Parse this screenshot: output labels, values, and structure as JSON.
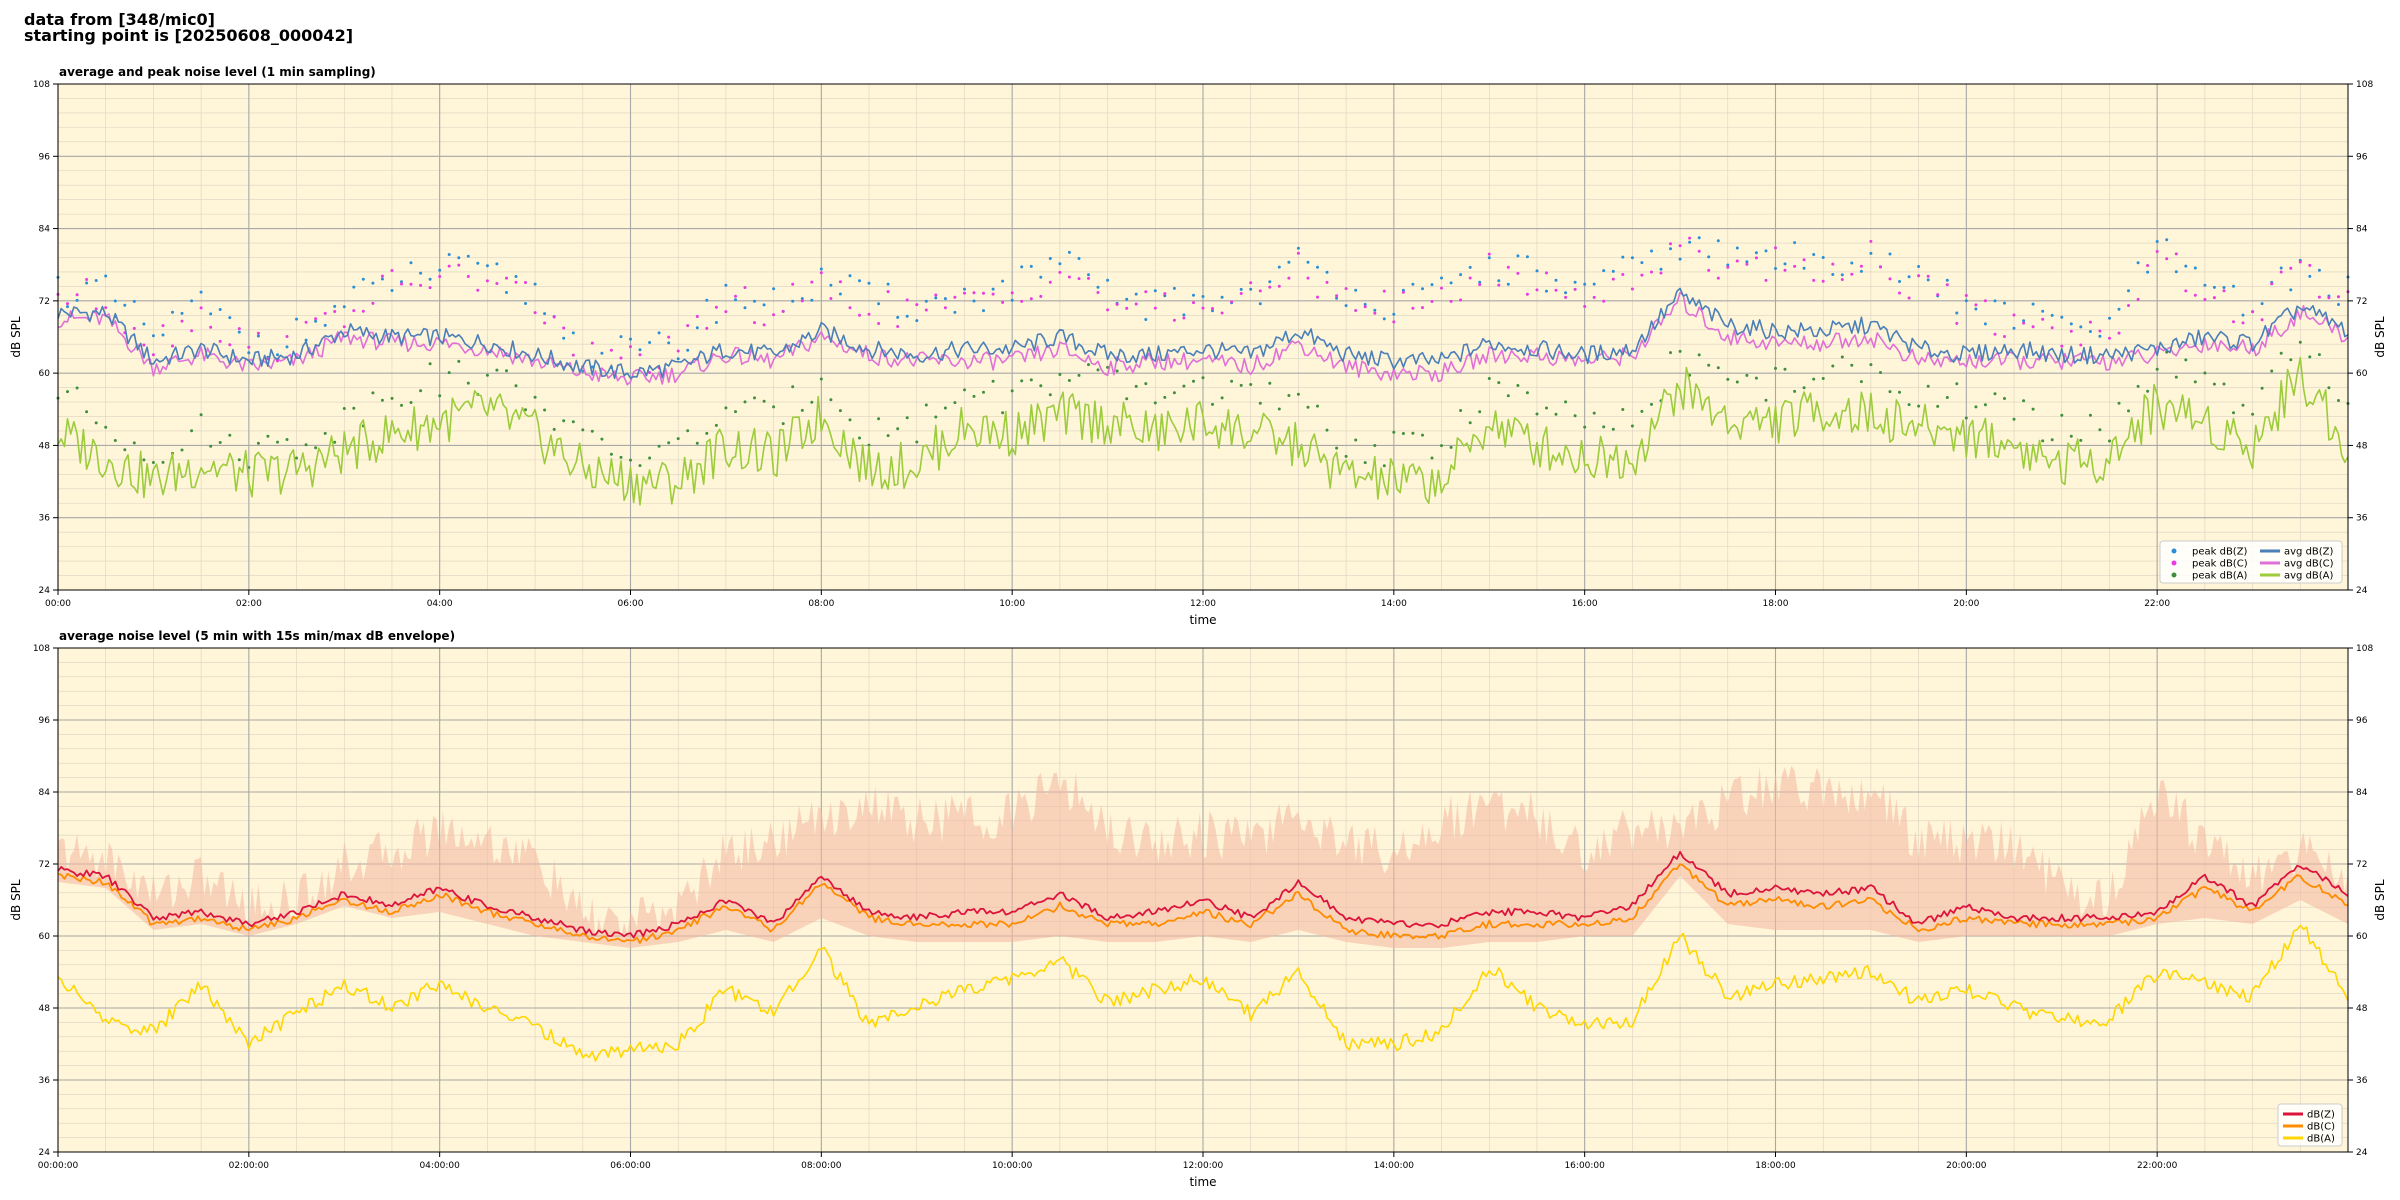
{
  "header": {
    "line1": "data from [348/mic0]",
    "line2": "starting point is [20250608_000042]"
  },
  "colors": {
    "plot_bg": "#fff5d8",
    "peak_z": "#2b8fd6",
    "peak_c": "#e83ce0",
    "peak_a": "#3f8f3f",
    "avg_z": "#4a7fb8",
    "avg_c": "#e070d8",
    "avg_a": "#9ccc3c",
    "env_z": "#dc143c",
    "env_c": "#ff8c00",
    "env_a": "#ffd700",
    "envelope_band": "#f4b6a0"
  },
  "chart_data": [
    {
      "type": "scatter+line",
      "title": "average and peak noise level (1 min sampling)",
      "xlabel": "time",
      "ylabel": "dB SPL",
      "ylim": [
        24,
        108
      ],
      "yticks": [
        24,
        36,
        48,
        60,
        72,
        84,
        96,
        108
      ],
      "xlim_hours": [
        0,
        24
      ],
      "xtick_hours": [
        0,
        2,
        4,
        6,
        8,
        10,
        12,
        14,
        16,
        18,
        20,
        22
      ],
      "xtick_labels": [
        "00:00",
        "02:00",
        "04:00",
        "06:00",
        "08:00",
        "10:00",
        "12:00",
        "14:00",
        "16:00",
        "18:00",
        "20:00",
        "22:00"
      ],
      "grid": true,
      "legend_position": "lower-right",
      "legend": [
        "peak dB(Z)",
        "peak dB(C)",
        "peak dB(A)",
        "avg dB(Z)",
        "avg dB(C)",
        "avg dB(A)"
      ],
      "x_hours": [
        0,
        0.5,
        1,
        1.5,
        2,
        2.5,
        3,
        3.5,
        4,
        4.5,
        5,
        5.5,
        6,
        6.5,
        7,
        7.5,
        8,
        8.5,
        9,
        9.5,
        10,
        10.5,
        11,
        11.5,
        12,
        12.5,
        13,
        13.5,
        14,
        14.5,
        15,
        15.5,
        16,
        16.5,
        17,
        17.5,
        18,
        18.5,
        19,
        19.5,
        20,
        20.5,
        21,
        21.5,
        22,
        22.5,
        23,
        23.5,
        24
      ],
      "series": [
        {
          "name": "avg dB(Z)",
          "values": [
            70,
            70,
            62,
            64,
            62,
            63,
            67,
            66,
            66,
            65,
            63,
            61,
            60,
            61,
            64,
            63,
            67,
            64,
            63,
            64,
            64,
            66,
            63,
            63,
            64,
            63,
            67,
            63,
            62,
            62,
            65,
            64,
            63,
            64,
            73,
            68,
            67,
            67,
            68,
            64,
            63,
            64,
            63,
            63,
            64,
            66,
            65,
            71,
            67
          ]
        },
        {
          "name": "avg dB(C)",
          "values": [
            69,
            69,
            61,
            63,
            61,
            62,
            66,
            65,
            65,
            64,
            62,
            60,
            59,
            60,
            63,
            62,
            66,
            63,
            62,
            62,
            62,
            64,
            61,
            62,
            62,
            61,
            65,
            61,
            60,
            60,
            63,
            63,
            62,
            63,
            72,
            66,
            65,
            65,
            66,
            62,
            62,
            62,
            62,
            62,
            63,
            65,
            64,
            70,
            66
          ]
        },
        {
          "name": "avg dB(A)",
          "values": [
            50,
            46,
            42,
            45,
            43,
            44,
            47,
            50,
            52,
            54,
            50,
            44,
            42,
            42,
            48,
            46,
            53,
            44,
            45,
            51,
            50,
            53,
            52,
            50,
            52,
            50,
            48,
            43,
            42,
            42,
            52,
            48,
            46,
            46,
            58,
            52,
            52,
            54,
            53,
            51,
            50,
            48,
            45,
            46,
            55,
            52,
            48,
            60,
            48
          ]
        },
        {
          "name": "peak dB(Z)",
          "values": [
            73,
            72,
            65,
            70,
            64,
            65,
            70,
            74,
            76,
            75,
            72,
            62,
            62,
            63,
            72,
            70,
            74,
            71,
            70,
            71,
            73,
            77,
            72,
            70,
            71,
            72,
            77,
            73,
            70,
            72,
            77,
            75,
            72,
            76,
            80,
            78,
            78,
            77,
            79,
            74,
            70,
            68,
            67,
            66,
            80,
            72,
            70,
            76,
            72
          ]
        },
        {
          "name": "peak dB(C)",
          "values": [
            72,
            71,
            64,
            69,
            63,
            64,
            69,
            73,
            75,
            74,
            71,
            61,
            61,
            62,
            71,
            69,
            73,
            70,
            69,
            70,
            72,
            76,
            71,
            69,
            70,
            71,
            76,
            72,
            69,
            71,
            76,
            74,
            71,
            75,
            79,
            77,
            77,
            76,
            78,
            73,
            69,
            67,
            66,
            65,
            79,
            71,
            69,
            75,
            71
          ]
        },
        {
          "name": "peak dB(A)",
          "values": [
            56,
            50,
            46,
            49,
            46,
            47,
            51,
            56,
            58,
            58,
            55,
            47,
            45,
            46,
            53,
            51,
            58,
            49,
            50,
            56,
            55,
            58,
            57,
            55,
            57,
            55,
            53,
            47,
            46,
            47,
            57,
            53,
            50,
            50,
            62,
            57,
            57,
            59,
            58,
            56,
            54,
            52,
            49,
            50,
            60,
            57,
            52,
            64,
            52
          ]
        }
      ]
    },
    {
      "type": "line+area",
      "title": "average noise level (5 min with 15s min/max dB envelope)",
      "xlabel": "time",
      "ylabel": "dB SPL",
      "ylim": [
        24,
        108
      ],
      "yticks": [
        24,
        36,
        48,
        60,
        72,
        84,
        96,
        108
      ],
      "xlim_hours": [
        0,
        24
      ],
      "xtick_hours": [
        0,
        2,
        4,
        6,
        8,
        10,
        12,
        14,
        16,
        18,
        20,
        22
      ],
      "xtick_labels": [
        "00:00:00",
        "02:00:00",
        "04:00:00",
        "06:00:00",
        "08:00:00",
        "10:00:00",
        "12:00:00",
        "14:00:00",
        "16:00:00",
        "18:00:00",
        "20:00:00",
        "22:00:00"
      ],
      "grid": true,
      "legend_position": "lower-right",
      "legend": [
        "dB(Z)",
        "dB(C)",
        "dB(A)"
      ],
      "x_hours": [
        0,
        0.5,
        1,
        1.5,
        2,
        2.5,
        3,
        3.5,
        4,
        4.5,
        5,
        5.5,
        6,
        6.5,
        7,
        7.5,
        8,
        8.5,
        9,
        9.5,
        10,
        10.5,
        11,
        11.5,
        12,
        12.5,
        13,
        13.5,
        14,
        14.5,
        15,
        15.5,
        16,
        16.5,
        17,
        17.5,
        18,
        18.5,
        19,
        19.5,
        20,
        20.5,
        21,
        21.5,
        22,
        22.5,
        23,
        23.5,
        24
      ],
      "series": [
        {
          "name": "dB(Z)",
          "values": [
            71,
            70,
            63,
            64,
            62,
            64,
            67,
            65,
            68,
            65,
            63,
            61,
            60,
            62,
            66,
            62,
            70,
            64,
            63,
            64,
            64,
            67,
            63,
            64,
            66,
            63,
            69,
            63,
            62,
            62,
            64,
            64,
            63,
            65,
            74,
            67,
            68,
            67,
            68,
            62,
            65,
            63,
            63,
            63,
            64,
            70,
            65,
            72,
            67
          ]
        },
        {
          "name": "dB(C)",
          "values": [
            70,
            69,
            62,
            63,
            61,
            63,
            66,
            64,
            67,
            64,
            62,
            60,
            59,
            61,
            65,
            61,
            69,
            63,
            62,
            62,
            62,
            65,
            62,
            62,
            64,
            62,
            67,
            61,
            60,
            60,
            62,
            62,
            62,
            63,
            72,
            65,
            66,
            65,
            66,
            61,
            63,
            62,
            62,
            62,
            63,
            68,
            64,
            70,
            65
          ]
        },
        {
          "name": "dB(A)",
          "values": [
            53,
            46,
            44,
            52,
            42,
            47,
            52,
            48,
            52,
            48,
            45,
            40,
            41,
            42,
            51,
            47,
            58,
            45,
            48,
            51,
            53,
            56,
            49,
            51,
            53,
            47,
            54,
            42,
            42,
            44,
            55,
            48,
            45,
            46,
            60,
            50,
            52,
            53,
            54,
            49,
            51,
            48,
            46,
            46,
            54,
            52,
            50,
            62,
            50
          ]
        },
        {
          "name": "envelope max",
          "values": [
            74,
            73,
            67,
            70,
            65,
            66,
            72,
            74,
            78,
            76,
            73,
            63,
            62,
            65,
            74,
            76,
            80,
            82,
            79,
            80,
            80,
            86,
            78,
            76,
            77,
            76,
            80,
            76,
            74,
            79,
            82,
            80,
            74,
            78,
            78,
            82,
            86,
            84,
            84,
            76,
            76,
            75,
            68,
            66,
            84,
            76,
            70,
            74,
            70
          ]
        },
        {
          "name": "envelope min",
          "values": [
            69,
            68,
            61,
            62,
            60,
            62,
            65,
            63,
            64,
            62,
            60,
            59,
            58,
            59,
            61,
            59,
            63,
            60,
            59,
            59,
            59,
            60,
            59,
            59,
            60,
            59,
            61,
            59,
            58,
            58,
            59,
            59,
            60,
            60,
            70,
            62,
            61,
            61,
            61,
            59,
            60,
            60,
            60,
            60,
            62,
            63,
            62,
            66,
            62
          ]
        }
      ]
    }
  ]
}
